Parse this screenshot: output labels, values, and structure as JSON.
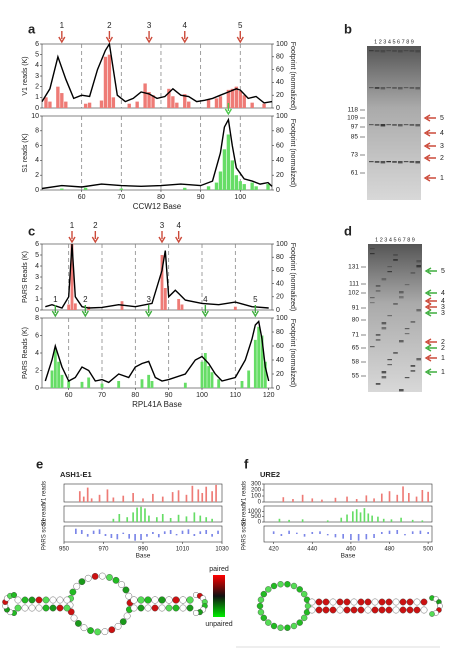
{
  "panels": [
    "a",
    "b",
    "c",
    "d",
    "e",
    "f"
  ],
  "chart_data": [
    {
      "type": "bar",
      "ylabel": "V1 reads (K)",
      "ylabel_color": "#d9534f",
      "y2label": "Footprint (normalized)",
      "xlim": [
        50,
        108
      ],
      "ylim": [
        0,
        6
      ],
      "yticks": [
        0,
        1,
        2,
        3,
        4,
        5,
        6
      ],
      "y2lim": [
        0,
        100
      ],
      "y2ticks": [
        0,
        20,
        40,
        60,
        80,
        100
      ],
      "vlines": [
        60,
        70,
        80,
        90,
        100
      ],
      "series": [
        {
          "type": "bar",
          "color": "#ee7b76",
          "x": [
            51,
            52,
            54,
            55,
            56,
            61,
            62,
            65,
            66,
            67,
            68,
            72,
            74,
            76,
            77,
            78,
            82,
            83,
            84,
            86,
            87,
            92,
            94,
            95,
            97,
            98,
            99,
            100,
            101,
            103,
            106
          ],
          "values": [
            1.0,
            0.6,
            2.0,
            1.4,
            0.6,
            0.4,
            0.5,
            0.7,
            4.8,
            5.0,
            1.0,
            0.4,
            0.6,
            2.3,
            1.5,
            1.2,
            1.8,
            1.1,
            0.5,
            1.3,
            0.6,
            0.8,
            0.9,
            1.1,
            1.7,
            1.8,
            2.0,
            1.6,
            1.2,
            0.5,
            0.4
          ]
        },
        {
          "type": "line",
          "axis": "y2",
          "color": "#000000",
          "x": [
            50,
            52,
            54,
            56,
            58,
            60,
            62,
            64,
            66,
            67,
            69,
            71,
            73,
            75,
            77,
            79,
            81,
            83,
            85,
            87,
            89,
            91,
            93,
            95,
            97,
            99,
            100,
            102,
            104,
            106,
            108
          ],
          "values": [
            10,
            30,
            80,
            45,
            15,
            20,
            18,
            60,
            90,
            100,
            20,
            10,
            15,
            25,
            22,
            15,
            18,
            30,
            20,
            18,
            10,
            12,
            15,
            20,
            25,
            30,
            28,
            15,
            18,
            8,
            10
          ]
        }
      ],
      "annotations": [
        {
          "label": "1",
          "x": 55,
          "color": "#cc4a3a"
        },
        {
          "label": "2",
          "x": 67,
          "color": "#cc4a3a"
        },
        {
          "label": "3",
          "x": 77,
          "color": "#cc4a3a"
        },
        {
          "label": "4",
          "x": 86,
          "color": "#cc4a3a"
        },
        {
          "label": "5",
          "x": 100,
          "color": "#cc4a3a"
        }
      ]
    },
    {
      "type": "bar",
      "ylabel": "S1 reads (K)",
      "ylabel_color": "#3fae3f",
      "y2label": "Footprint (normalized)",
      "xlabel": "CCW12 Base",
      "xlim": [
        50,
        108
      ],
      "ylim": [
        0,
        10
      ],
      "yticks": [
        0,
        2,
        4,
        6,
        8,
        10
      ],
      "y2lim": [
        0,
        100
      ],
      "y2ticks": [
        0,
        20,
        40,
        60,
        80,
        100
      ],
      "xticks": [
        60,
        70,
        80,
        90,
        100
      ],
      "vlines": [
        60,
        70,
        80,
        90,
        100
      ],
      "series": [
        {
          "type": "bar",
          "color": "#66dd66",
          "x": [
            55,
            61,
            70,
            86,
            92,
            94,
            95,
            96,
            97,
            98,
            99,
            100,
            101,
            103,
            104,
            107
          ],
          "values": [
            0.2,
            0.3,
            0.2,
            0.3,
            0.5,
            1.0,
            2.5,
            5.5,
            7.5,
            4.0,
            2.0,
            1.2,
            0.8,
            1.0,
            0.5,
            0.8
          ]
        },
        {
          "type": "line",
          "axis": "y2",
          "color": "#000000",
          "x": [
            50,
            55,
            60,
            65,
            70,
            75,
            80,
            85,
            90,
            93,
            95,
            96,
            97,
            98,
            99,
            101,
            103,
            105,
            107,
            108
          ],
          "values": [
            2,
            6,
            4,
            8,
            6,
            5,
            6,
            8,
            6,
            12,
            50,
            85,
            95,
            60,
            30,
            15,
            12,
            8,
            10,
            5
          ]
        }
      ],
      "annotations": [
        {
          "x": 97,
          "color": "#4cc94c"
        }
      ]
    },
    {
      "type": "bar",
      "ylabel": "PARS Reads (K)",
      "ylabel_color": "#d9534f",
      "y2label": "Footprint (normalized)",
      "xlim": [
        52,
        121
      ],
      "ylim": [
        0,
        6
      ],
      "yticks": [
        0,
        1,
        2,
        3,
        4,
        5,
        6
      ],
      "y2lim": [
        0,
        100
      ],
      "y2ticks": [
        0,
        20,
        40,
        60,
        80,
        100
      ],
      "vlines": [
        60,
        70,
        80,
        90,
        100,
        110
      ],
      "series": [
        {
          "type": "bar",
          "color": "#ee7b76",
          "x": [
            60,
            61,
            62,
            66,
            76,
            88,
            89,
            93,
            94,
            110
          ],
          "values": [
            0.5,
            6.0,
            0.6,
            0.3,
            0.8,
            5.0,
            2.0,
            1.0,
            0.5,
            0.3
          ]
        },
        {
          "type": "line",
          "axis": "y2",
          "color": "#000000",
          "x": [
            53,
            55,
            58,
            60,
            61,
            62,
            64,
            66,
            70,
            75,
            80,
            85,
            88,
            89,
            90,
            92,
            93,
            95,
            100,
            105,
            110,
            115,
            120
          ],
          "values": [
            5,
            8,
            3,
            20,
            100,
            20,
            5,
            3,
            4,
            8,
            5,
            10,
            60,
            90,
            20,
            30,
            25,
            15,
            10,
            8,
            12,
            5,
            3
          ]
        }
      ],
      "annotations": [
        {
          "label": "1",
          "x": 61,
          "color": "#cc4a3a"
        },
        {
          "label": "2",
          "x": 68,
          "color": "#cc4a3a"
        },
        {
          "label": "3",
          "x": 88,
          "color": "#cc4a3a"
        },
        {
          "label": "4",
          "x": 93,
          "color": "#cc4a3a"
        }
      ]
    },
    {
      "type": "bar",
      "ylabel": "PARS Reads (K)",
      "ylabel_color": "#3fae3f",
      "y2label": "Footprint (normalized)",
      "xlabel": "RPL41A Base",
      "xlim": [
        52,
        121
      ],
      "ylim": [
        0,
        8
      ],
      "yticks": [
        0,
        2,
        4,
        6,
        8
      ],
      "y2lim": [
        0,
        100
      ],
      "y2ticks": [
        0,
        20,
        40,
        60,
        80,
        100
      ],
      "xticks": [
        60,
        70,
        80,
        90,
        100,
        110,
        120
      ],
      "vlines": [
        60,
        70,
        80,
        90,
        100,
        110
      ],
      "series": [
        {
          "type": "bar",
          "color": "#66dd66",
          "x": [
            55,
            56,
            57,
            58,
            60,
            64,
            66,
            70,
            75,
            82,
            84,
            85,
            95,
            100,
            101,
            102,
            103,
            105,
            112,
            114,
            116,
            117,
            118,
            119
          ],
          "values": [
            2.0,
            4.5,
            3.0,
            1.5,
            0.8,
            0.7,
            1.2,
            0.5,
            0.8,
            1.0,
            1.5,
            0.8,
            0.6,
            3.0,
            4.0,
            2.5,
            1.8,
            1.0,
            0.8,
            2.0,
            5.5,
            7.0,
            6.0,
            3.0
          ]
        },
        {
          "type": "line",
          "axis": "y2",
          "color": "#000000",
          "x": [
            53,
            55,
            56,
            58,
            60,
            62,
            64,
            66,
            68,
            70,
            72,
            75,
            78,
            80,
            82,
            84,
            86,
            88,
            90,
            95,
            98,
            100,
            102,
            104,
            106,
            110,
            113,
            115,
            116,
            117,
            118,
            119,
            120
          ],
          "values": [
            10,
            40,
            60,
            30,
            10,
            15,
            30,
            25,
            10,
            12,
            8,
            20,
            15,
            30,
            35,
            38,
            15,
            10,
            12,
            20,
            40,
            45,
            35,
            20,
            10,
            15,
            40,
            70,
            90,
            95,
            70,
            30,
            10
          ]
        }
      ],
      "annotations": [
        {
          "label": "1",
          "x": 56,
          "color": "#3fae3f"
        },
        {
          "label": "2",
          "x": 65,
          "color": "#3fae3f"
        },
        {
          "label": "3",
          "x": 84,
          "color": "#3fae3f"
        },
        {
          "label": "4",
          "x": 101,
          "color": "#3fae3f"
        },
        {
          "label": "5",
          "x": 116,
          "color": "#3fae3f"
        }
      ]
    },
    {
      "type": "bar",
      "title": "ASH1-E1",
      "ylabel": "V1 reads",
      "ylabel_color": "#d9534f",
      "xlim": [
        950,
        1030
      ],
      "ylim": [
        0,
        100
      ],
      "series": [
        {
          "type": "bar",
          "color": "#ee7b76",
          "x": [
            958,
            960,
            962,
            964,
            968,
            972,
            975,
            980,
            985,
            990,
            995,
            1000,
            1005,
            1008,
            1012,
            1015,
            1018,
            1020,
            1022,
            1025,
            1027
          ],
          "values": [
            60,
            30,
            80,
            20,
            40,
            70,
            25,
            35,
            50,
            20,
            45,
            30,
            55,
            65,
            40,
            90,
            70,
            50,
            85,
            60,
            95
          ]
        }
      ]
    },
    {
      "type": "bar",
      "ylabel": "S1 reads",
      "ylabel_color": "#3fae3f",
      "xlim": [
        950,
        1030
      ],
      "ylim": [
        0,
        100
      ],
      "series": [
        {
          "type": "bar",
          "color": "#66dd66",
          "x": [
            975,
            978,
            982,
            985,
            987,
            989,
            991,
            993,
            997,
            1000,
            1004,
            1008,
            1012,
            1016,
            1019,
            1022,
            1025
          ],
          "values": [
            20,
            50,
            30,
            60,
            90,
            95,
            85,
            40,
            30,
            50,
            25,
            45,
            35,
            60,
            40,
            30,
            20
          ]
        }
      ]
    },
    {
      "type": "bar",
      "ylabel": "PARS score",
      "ylabel_color": "#6f7fe0",
      "xlim": [
        950,
        1030
      ],
      "ylim": [
        -60,
        60
      ],
      "xlabel": "Base",
      "xticks": [
        950,
        970,
        990,
        1010,
        1030
      ],
      "series": [
        {
          "type": "bar",
          "color": "#7b86e8",
          "x": [
            956,
            959,
            962,
            965,
            968,
            971,
            974,
            977,
            980,
            983,
            986,
            989,
            992,
            995,
            998,
            1001,
            1004,
            1007,
            1010,
            1013,
            1016,
            1019,
            1022,
            1025,
            1028
          ],
          "values": [
            40,
            30,
            -20,
            25,
            35,
            -15,
            -30,
            -40,
            10,
            -35,
            -50,
            -45,
            -20,
            15,
            -25,
            20,
            30,
            -10,
            25,
            35,
            -15,
            20,
            30,
            -20,
            25
          ]
        }
      ]
    },
    {
      "type": "bar",
      "title": "URE2",
      "ylabel": "V1 reads",
      "ylabel_color": "#d9534f",
      "xlim": [
        415,
        502
      ],
      "ylim": [
        0,
        300
      ],
      "yticks": [
        0,
        100,
        200,
        300
      ],
      "series": [
        {
          "type": "bar",
          "color": "#ee7b76",
          "x": [
            425,
            430,
            435,
            440,
            445,
            452,
            458,
            463,
            468,
            472,
            476,
            480,
            484,
            487,
            490,
            494,
            497,
            500
          ],
          "values": [
            80,
            50,
            120,
            60,
            40,
            70,
            90,
            50,
            110,
            60,
            140,
            180,
            120,
            260,
            150,
            90,
            200,
            170
          ]
        }
      ]
    },
    {
      "type": "bar",
      "ylabel": "S1 reads",
      "ylabel_color": "#3fae3f",
      "xlim": [
        415,
        502
      ],
      "ylim": [
        0,
        1500
      ],
      "yticks": [
        0,
        500,
        1000
      ],
      "series": [
        {
          "type": "bar",
          "color": "#66dd66",
          "x": [
            423,
            428,
            435,
            448,
            455,
            458,
            461,
            463,
            465,
            467,
            469,
            471,
            474,
            477,
            481,
            486,
            492,
            497
          ],
          "values": [
            300,
            200,
            250,
            150,
            400,
            700,
            1000,
            1200,
            900,
            1300,
            800,
            600,
            500,
            300,
            250,
            400,
            200,
            150
          ]
        }
      ]
    },
    {
      "type": "bar",
      "ylabel": "PARS score",
      "ylabel_color": "#6f7fe0",
      "xlim": [
        415,
        502
      ],
      "ylim": [
        -60,
        60
      ],
      "xlabel": "Base",
      "xticks": [
        420,
        440,
        460,
        480,
        500
      ],
      "series": [
        {
          "type": "bar",
          "color": "#7b86e8",
          "x": [
            420,
            424,
            428,
            432,
            436,
            440,
            444,
            448,
            452,
            456,
            460,
            464,
            468,
            472,
            476,
            480,
            484,
            488,
            492,
            496,
            500
          ],
          "values": [
            20,
            -15,
            25,
            10,
            -20,
            15,
            20,
            -10,
            -25,
            -35,
            -45,
            -50,
            -40,
            -30,
            15,
            25,
            30,
            -10,
            20,
            25,
            15
          ]
        }
      ]
    }
  ],
  "gels": [
    {
      "lanes": "1 2 3 4 5 6 7 8 9",
      "markers": [
        "118",
        "109",
        "97",
        "85",
        "73",
        "61"
      ],
      "arrows": [
        {
          "label": "5",
          "color": "#cc4a3a"
        },
        {
          "label": "4",
          "color": "#cc4a3a"
        },
        {
          "label": "3",
          "color": "#cc4a3a"
        },
        {
          "label": "2",
          "color": "#cc4a3a"
        },
        {
          "label": "1",
          "color": "#cc4a3a"
        }
      ]
    },
    {
      "lanes": "1 2 3 4 5 6 7 8 9",
      "markers": [
        "131",
        "111",
        "102",
        "91",
        "80",
        "71",
        "65",
        "58",
        "55"
      ],
      "arrows": [
        {
          "label": "5",
          "color": "#3fae3f"
        },
        {
          "label": "4",
          "color": "#3fae3f"
        },
        {
          "label": "4",
          "color": "#cc4a3a"
        },
        {
          "label": "3",
          "color": "#cc4a3a"
        },
        {
          "label": "3",
          "color": "#3fae3f"
        },
        {
          "label": "2",
          "color": "#cc4a3a"
        },
        {
          "label": "2",
          "color": "#3fae3f"
        },
        {
          "label": "1",
          "color": "#cc4a3a"
        },
        {
          "label": "1",
          "color": "#3fae3f"
        }
      ]
    }
  ],
  "colorbar": {
    "top": "paired",
    "bottom": "unpaired"
  }
}
